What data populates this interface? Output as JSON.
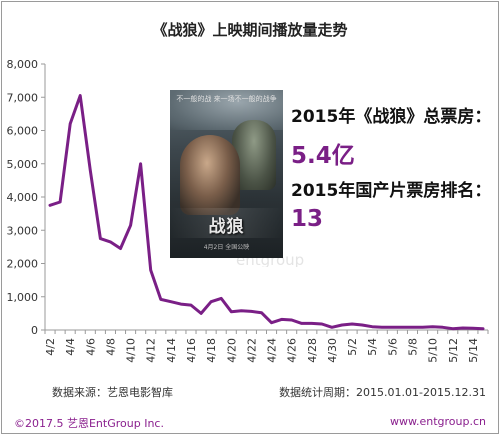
{
  "title": "《战狼》上映期间播放量走势",
  "poster": {
    "top_text": "不一般的战 来一场不一般的战争",
    "logo_text": "战狼",
    "bottom_text": "4月2日 全国公映"
  },
  "info": {
    "box_office_label": "2015年《战狼》总票房：",
    "box_office_value": "5.4亿",
    "rank_label": "2015年国产片票房排名：",
    "rank_value": "13"
  },
  "watermark": {
    "text": "entgroup",
    "char": "恩"
  },
  "footer": {
    "source": "数据来源：艺恩电影智库",
    "period": "数据统计周期：2015.01.01-2015.12.31",
    "copyright": "©2017.5  艺恩EntGroup Inc.",
    "url": "www.entgroup.cn"
  },
  "colors": {
    "line": "#7a1f86",
    "accent": "#7a1f86",
    "axis": "#9a9a9a"
  },
  "chart_data": {
    "type": "line",
    "title": "《战狼》上映期间播放量走势",
    "xlabel": "",
    "ylabel": "",
    "ylim": [
      0,
      8000
    ],
    "yticks": [
      "0",
      "1,000",
      "2,000",
      "3,000",
      "4,000",
      "5,000",
      "6,000",
      "7,000",
      "8,000"
    ],
    "ytick_values": [
      0,
      1000,
      2000,
      3000,
      4000,
      5000,
      6000,
      7000,
      8000
    ],
    "grid": false,
    "x_tick_labels": [
      "4/2",
      "4/4",
      "4/6",
      "4/8",
      "4/10",
      "4/12",
      "4/14",
      "4/16",
      "4/18",
      "4/20",
      "4/22",
      "4/24",
      "4/26",
      "4/28",
      "4/30",
      "5/2",
      "5/4",
      "5/6",
      "5/8",
      "5/10",
      "5/12",
      "5/14"
    ],
    "x": [
      "4/2",
      "4/3",
      "4/4",
      "4/5",
      "4/6",
      "4/7",
      "4/8",
      "4/9",
      "4/10",
      "4/11",
      "4/12",
      "4/13",
      "4/14",
      "4/15",
      "4/16",
      "4/17",
      "4/18",
      "4/19",
      "4/20",
      "4/21",
      "4/22",
      "4/23",
      "4/24",
      "4/25",
      "4/26",
      "4/27",
      "4/28",
      "4/29",
      "4/30",
      "5/1",
      "5/2",
      "5/3",
      "5/4",
      "5/5",
      "5/6",
      "5/7",
      "5/8",
      "5/9",
      "5/10",
      "5/11",
      "5/12",
      "5/13",
      "5/14",
      "5/15"
    ],
    "series": [
      {
        "values": [
          3750,
          3850,
          6200,
          7050,
          4800,
          2750,
          2650,
          2450,
          3150,
          5000,
          1800,
          920,
          850,
          780,
          750,
          500,
          850,
          950,
          550,
          580,
          560,
          520,
          220,
          320,
          300,
          200,
          200,
          180,
          80,
          150,
          180,
          150,
          100,
          80,
          80,
          80,
          80,
          80,
          100,
          80,
          40,
          60,
          50,
          40
        ]
      }
    ]
  }
}
